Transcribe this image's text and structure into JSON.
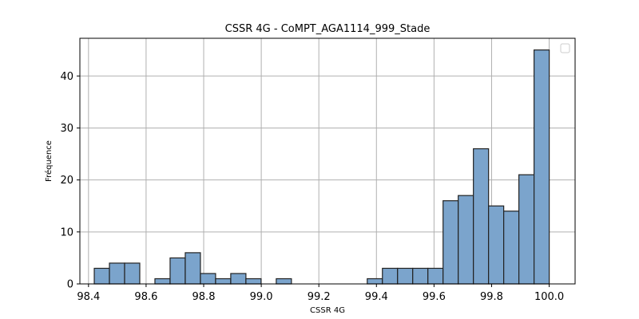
{
  "chart_data": {
    "type": "bar",
    "title": "CSSR 4G - CoMPT_AGA1114_999_Stade",
    "xlabel": "CSSR 4G",
    "ylabel": "Fréquence",
    "xlim": [
      98.37,
      100.09
    ],
    "ylim": [
      0,
      47.25
    ],
    "x_ticks": [
      "98.4",
      "98.6",
      "98.8",
      "99.0",
      "99.2",
      "99.4",
      "99.6",
      "99.8",
      "100.0"
    ],
    "x_tick_values": [
      98.4,
      98.6,
      98.8,
      99.0,
      99.2,
      99.4,
      99.6,
      99.8,
      100.0
    ],
    "y_ticks": [
      "0",
      "10",
      "20",
      "30",
      "40"
    ],
    "y_tick_values": [
      0,
      10,
      20,
      30,
      40
    ],
    "grid": true,
    "legend": "top-right (empty)",
    "bar_color": "#7ba4cc",
    "edge_color": "#222222",
    "bin_start": 98.42,
    "bin_width": 0.05267,
    "values": [
      3,
      4,
      4,
      0,
      1,
      5,
      6,
      2,
      1,
      2,
      1,
      0,
      1,
      0,
      0,
      0,
      0,
      0,
      1,
      3,
      3,
      3,
      3,
      16,
      17,
      26,
      15,
      14,
      21,
      45
    ]
  }
}
